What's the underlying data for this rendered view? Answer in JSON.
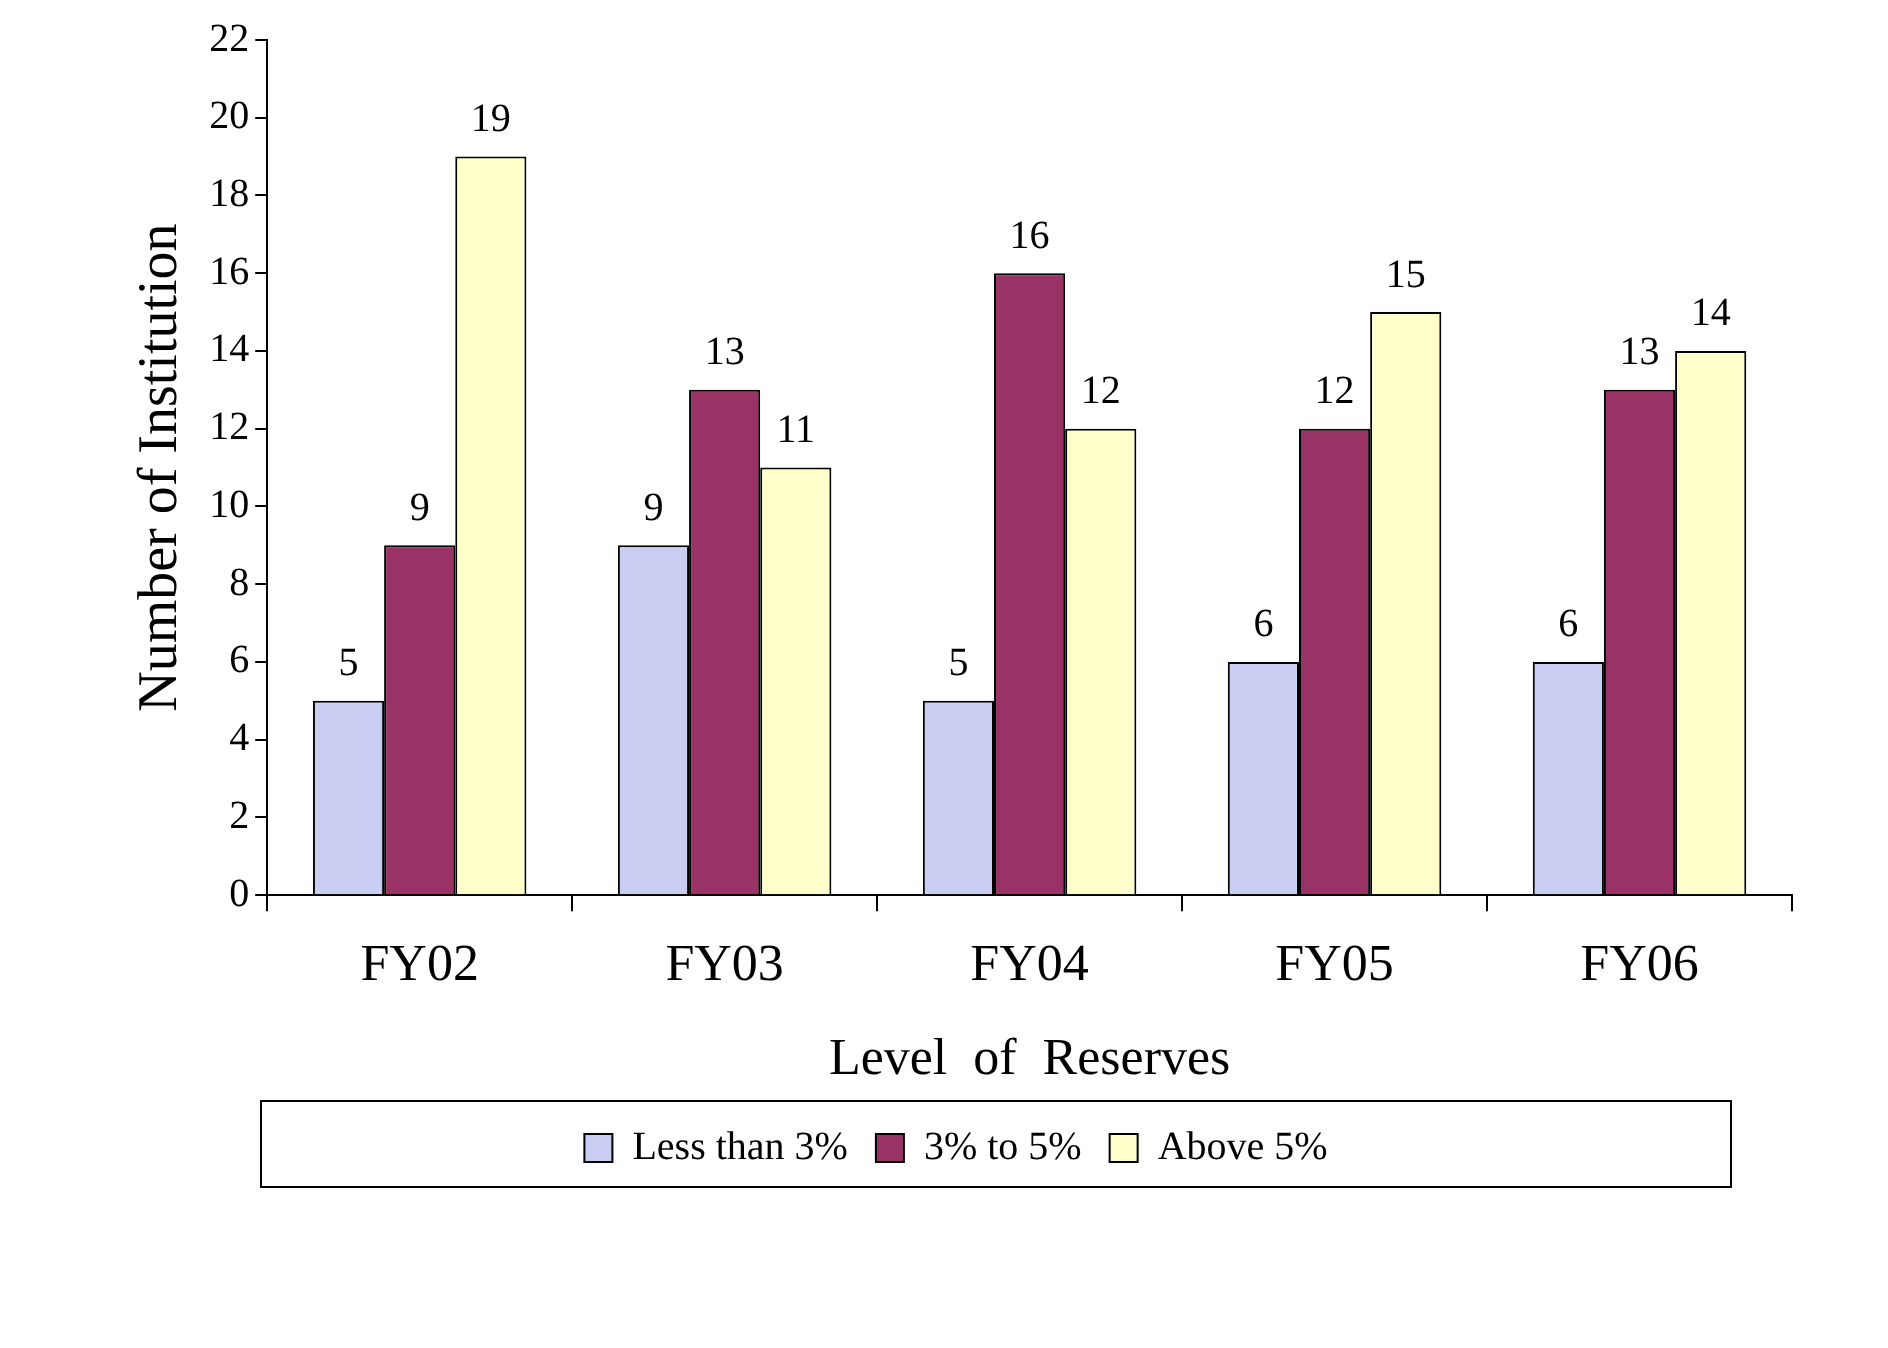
{
  "chart_data": {
    "type": "bar",
    "xlabel": "Level  of  Reserves",
    "ylabel": "Number of Institution",
    "categories": [
      "FY02",
      "FY03",
      "FY04",
      "FY05",
      "FY06"
    ],
    "series": [
      {
        "name": "Less than 3%",
        "color": "#c9cdf2",
        "values": [
          5,
          9,
          5,
          6,
          6
        ]
      },
      {
        "name": "3% to 5%",
        "color": "#993366",
        "values": [
          9,
          13,
          16,
          12,
          13
        ]
      },
      {
        "name": "Above 5%",
        "color": "#ffffcc",
        "values": [
          19,
          11,
          12,
          15,
          14
        ]
      }
    ],
    "ylim": [
      0,
      22
    ],
    "yticks": [
      0,
      2,
      4,
      6,
      8,
      10,
      12,
      14,
      16,
      18,
      20,
      22
    ],
    "grid": false,
    "legend": "bottom",
    "data_labels": true
  }
}
